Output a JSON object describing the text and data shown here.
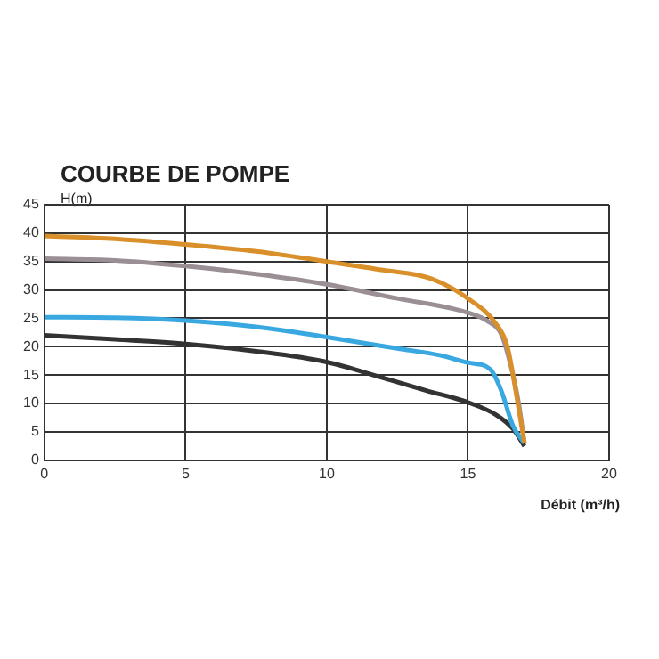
{
  "chart_data": {
    "type": "line",
    "title": "COURBE DE POMPE",
    "xlabel": "Débit (m³/h)",
    "ylabel": "H(m)",
    "xlim": [
      0,
      20
    ],
    "xticks": [
      0,
      5,
      10,
      15,
      20
    ],
    "ylim": [
      0,
      45
    ],
    "yticks": [
      0,
      5,
      10,
      15,
      20,
      25,
      30,
      35,
      40,
      45
    ],
    "grid": true,
    "legend": false,
    "marker": "none",
    "line_style": "solid",
    "series": [
      {
        "color": "#d9902a",
        "x": [
          0,
          2.5,
          5,
          7.5,
          10,
          12,
          13.7,
          15,
          16,
          16.4,
          16.7,
          17
        ],
        "values": [
          39.5,
          39,
          38,
          36.8,
          35,
          33.5,
          32,
          28.5,
          24,
          20,
          12,
          3
        ]
      },
      {
        "color": "#9a8f94",
        "x": [
          0,
          2.5,
          5,
          7.5,
          10,
          12.5,
          15,
          15.7,
          16.2,
          16.5,
          16.8,
          17
        ],
        "values": [
          35.5,
          35.2,
          34.2,
          32.8,
          31,
          28.5,
          26,
          24.5,
          22,
          17,
          10,
          3
        ]
      },
      {
        "color": "#3aa8e0",
        "x": [
          0,
          2.5,
          5,
          7.5,
          10,
          12.5,
          14,
          15,
          15.8,
          16.2,
          16.6,
          17
        ],
        "values": [
          25.2,
          25.1,
          24.6,
          23.5,
          21.7,
          19.7,
          18.5,
          17.2,
          16,
          12,
          6,
          3
        ]
      },
      {
        "color": "#333333",
        "x": [
          0,
          2.5,
          5,
          7.5,
          10,
          12,
          13.5,
          15,
          16,
          16.6,
          17
        ],
        "values": [
          22,
          21.3,
          20.5,
          19.2,
          17.3,
          14.5,
          12.3,
          10.2,
          8,
          5.5,
          2.5
        ]
      }
    ]
  }
}
